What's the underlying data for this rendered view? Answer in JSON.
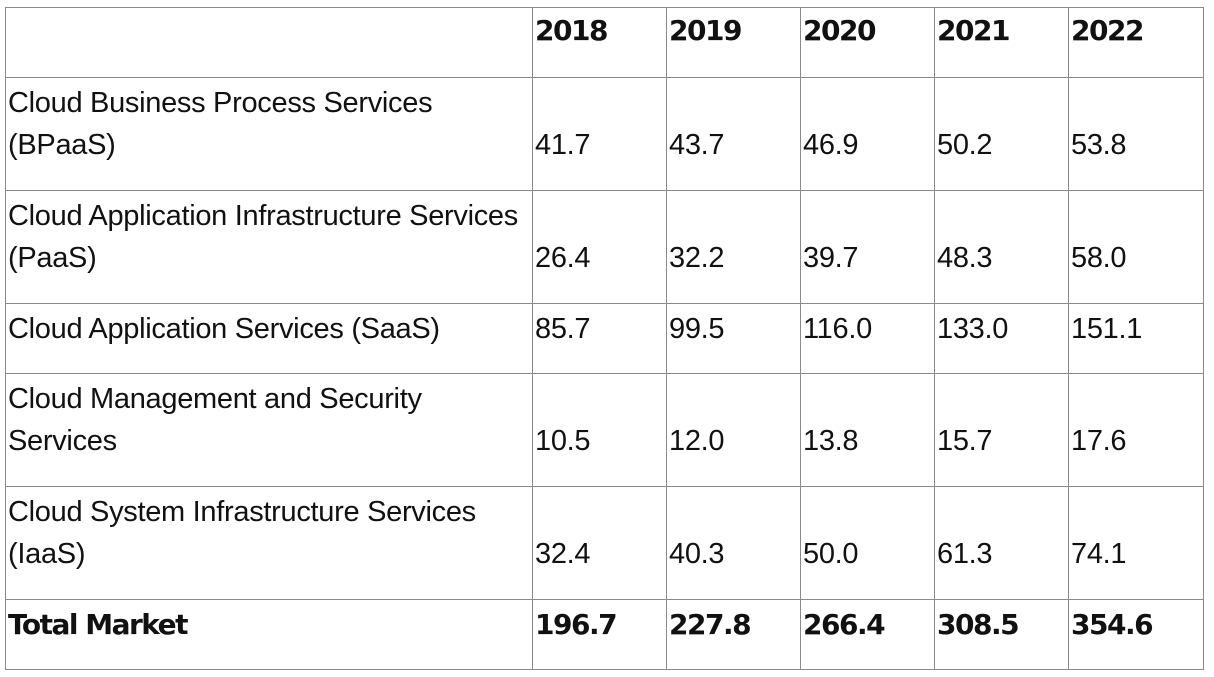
{
  "table": {
    "header": [
      "",
      "2018",
      "2019",
      "2020",
      "2021",
      "2022"
    ],
    "rows": [
      {
        "label": "Cloud Business Process Services (BPaaS)",
        "values": [
          "41.7",
          "43.7",
          "46.9",
          "50.2",
          "53.8"
        ]
      },
      {
        "label": "Cloud Application Infrastructure Services (PaaS)",
        "values": [
          "26.4",
          "32.2",
          "39.7",
          "48.3",
          "58.0"
        ]
      },
      {
        "label": "Cloud Application Services (SaaS)",
        "values": [
          "85.7",
          "99.5",
          "116.0",
          "133.0",
          "151.1"
        ]
      },
      {
        "label": "Cloud Management and Security Services",
        "values": [
          "10.5",
          "12.0",
          "13.8",
          "15.7",
          "17.6"
        ]
      },
      {
        "label": "Cloud System Infrastructure Services (IaaS)",
        "values": [
          "32.4",
          "40.3",
          "50.0",
          "61.3",
          "74.1"
        ]
      }
    ],
    "total": {
      "label": "Total Market",
      "values": [
        "196.7",
        "227.8",
        "266.4",
        "308.5",
        "354.6"
      ]
    }
  }
}
